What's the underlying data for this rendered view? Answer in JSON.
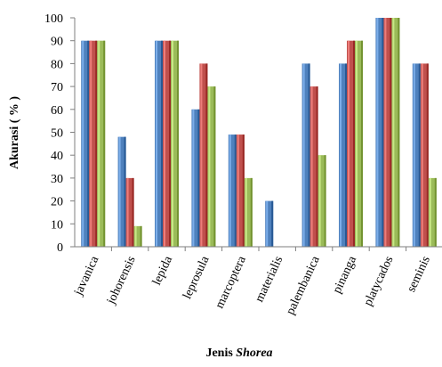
{
  "chart_data": {
    "type": "bar",
    "categories": [
      "javanica",
      "johorensis",
      "lepida",
      "leprosula",
      "marcoptera",
      "materialis",
      "palembanica",
      "pinanga",
      "platycados",
      "seminis"
    ],
    "series": [
      {
        "color": "#4F81BD",
        "values": [
          90,
          48,
          90,
          60,
          49,
          20,
          80,
          80,
          100,
          80
        ]
      },
      {
        "color": "#C0504D",
        "values": [
          90,
          30,
          90,
          80,
          49,
          0,
          70,
          90,
          100,
          80
        ]
      },
      {
        "color": "#9BBB59",
        "values": [
          90,
          9,
          90,
          70,
          30,
          0,
          40,
          90,
          100,
          30
        ]
      }
    ],
    "ylabel": "Akurasi ( % )",
    "xlabel_prefix": "Jenis ",
    "xlabel_italic": "Shorea",
    "ylim": [
      0,
      100
    ],
    "yticks": [
      0,
      10,
      20,
      30,
      40,
      50,
      60,
      70,
      80,
      90,
      100
    ],
    "grid": false,
    "legend": "none"
  }
}
